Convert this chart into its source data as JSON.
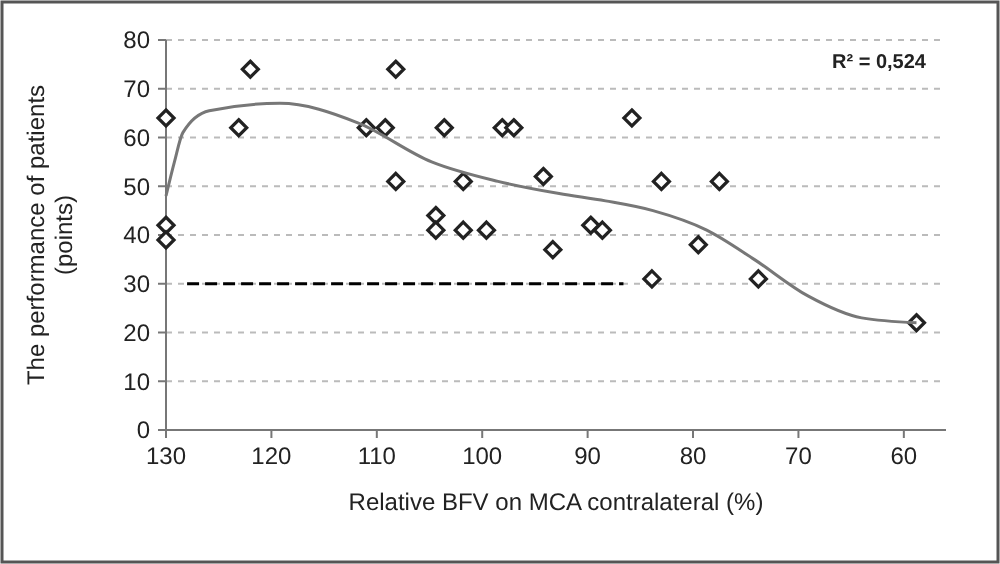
{
  "chart_data": {
    "type": "scatter",
    "xlabel": "Relative BFV on MCA contralateral (%)",
    "ylabel": "The performance of patients (points)",
    "xlim": [
      130,
      56
    ],
    "xticks": [
      130,
      120,
      110,
      100,
      90,
      80,
      70,
      60
    ],
    "ylim": [
      0,
      80
    ],
    "yticks": [
      0,
      10,
      20,
      30,
      40,
      50,
      60,
      70,
      80
    ],
    "grid": "y",
    "marker": "diamond",
    "annotations": [
      "R² = 0,524"
    ],
    "series": [
      {
        "color": "#222222",
        "x": [
          130,
          130,
          130,
          123.1,
          122,
          111,
          109.2,
          108.2,
          108.2,
          103.6,
          104.4,
          104.4,
          101.8,
          101.8,
          99.6,
          98.1,
          97,
          94.2,
          93.3,
          89.7,
          88.6,
          85.8,
          83.9,
          83,
          79.5,
          77.5,
          73.8,
          58.8
        ],
        "values": [
          64,
          42,
          39,
          62,
          74,
          62,
          62,
          74,
          51,
          62,
          44,
          41,
          51,
          41,
          41,
          62,
          62,
          52,
          37,
          42,
          41,
          64,
          31,
          51,
          38,
          51,
          31,
          22
        ]
      },
      {
        "type": "line",
        "color": "#777777",
        "marker": "none",
        "x": [
          130,
          129.2,
          128.4,
          125.9,
          119.2,
          111.8,
          104.8,
          98.5,
          92.7,
          88.3,
          83.8,
          78.7,
          74.2,
          69.1,
          64,
          58.8
        ],
        "values": [
          48,
          55,
          61,
          65.5,
          67,
          63,
          55,
          51,
          48.5,
          47,
          45,
          41,
          35,
          27.5,
          23,
          22
        ]
      },
      {
        "type": "line",
        "color": "#000000",
        "marker": "none",
        "line_style": "dashed",
        "x": [
          128,
          86.6
        ],
        "values": [
          30,
          30
        ]
      }
    ]
  }
}
